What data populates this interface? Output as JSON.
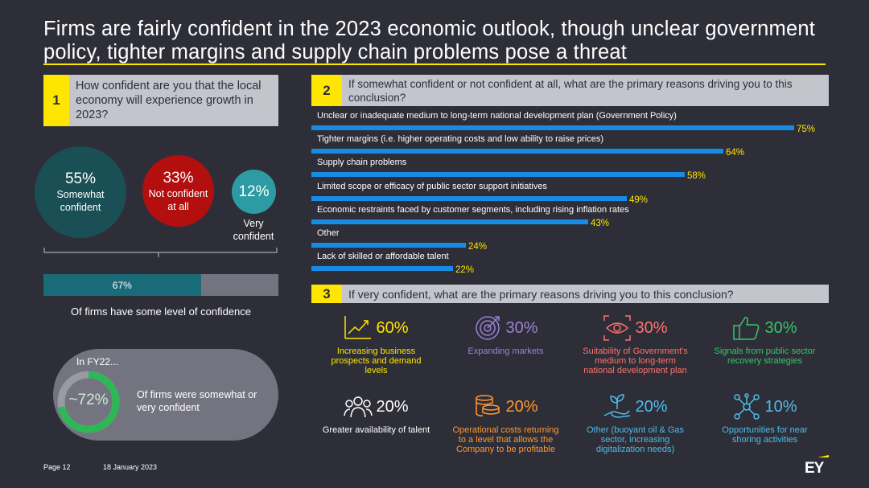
{
  "title": "Firms are fairly confident in the 2023 economic outlook, though unclear government policy, tighter margins and supply chain problems pose a threat",
  "q1": {
    "number": "1",
    "question": "How confident are you that the local economy will experience growth in 2023?",
    "circles": [
      {
        "pct": "55%",
        "label": "Somewhat confident",
        "color": "#1a4f55"
      },
      {
        "pct": "33%",
        "label": "Not confident at all",
        "color": "#b30f0f"
      },
      {
        "pct": "12%",
        "label": "Very confident",
        "color": "#2c9ba3"
      }
    ],
    "summary_bar_value": "67%",
    "summary_bar_fraction": 0.67,
    "summary_caption": "Of firms have some level of confidence",
    "fy22_label": "In FY22...",
    "fy22_value": "~72%",
    "fy22_fraction": 0.72,
    "fy22_caption": "Of firms were somewhat or very confident"
  },
  "q2": {
    "number": "2",
    "question": "If somewhat confident or not confident at all, what are the primary reasons driving you to this conclusion?",
    "items": [
      {
        "label": "Unclear or inadequate medium to long-term national development plan (Government Policy)",
        "value": 75,
        "value_text": "75%"
      },
      {
        "label": "Tighter margins (i.e. higher operating costs and low ability to raise prices)",
        "value": 64,
        "value_text": "64%"
      },
      {
        "label": "Supply chain problems",
        "value": 58,
        "value_text": "58%"
      },
      {
        "label": "Limited scope or efficacy of public sector support initiatives",
        "value": 49,
        "value_text": "49%"
      },
      {
        "label": "Economic restraints faced by customer segments, including rising inflation rates",
        "value": 43,
        "value_text": "43%"
      },
      {
        "label": "Other",
        "value": 24,
        "value_text": "24%"
      },
      {
        "label": "Lack of skilled or affordable talent",
        "value": 22,
        "value_text": "22%"
      }
    ]
  },
  "q3": {
    "number": "3",
    "question": "If very confident, what are the primary reasons driving you to this conclusion?",
    "tiles": [
      {
        "pct": "60%",
        "desc": "Increasing business prospects and demand levels",
        "color": "#ffe600",
        "icon": "growth-chart-icon"
      },
      {
        "pct": "30%",
        "desc": "Expanding markets",
        "color": "#9c82d4",
        "icon": "target-icon"
      },
      {
        "pct": "30%",
        "desc": "Suitability of Government's medium to long-term national development plan",
        "color": "#ff736a",
        "icon": "eye-vision-icon"
      },
      {
        "pct": "30%",
        "desc": "Signals from public sector recovery strategies",
        "color": "#34c768",
        "icon": "thumbs-up-icon"
      },
      {
        "pct": "20%",
        "desc": "Greater availability of talent",
        "color": "#ffffff",
        "icon": "people-icon"
      },
      {
        "pct": "20%",
        "desc": "Operational costs returning to a level that allows the Company to be profitable",
        "color": "#ff9831",
        "icon": "coins-icon"
      },
      {
        "pct": "20%",
        "desc": "Other (buoyant oil & Gas sector, increasing digitalization needs)",
        "color": "#4ebeeb",
        "icon": "hand-plant-icon"
      },
      {
        "pct": "10%",
        "desc": "Opportunities for near shoring activities",
        "color": "#4ebeeb",
        "icon": "network-icon"
      }
    ]
  },
  "footer": {
    "page": "Page 12",
    "date": "18 January 2023",
    "logo": "EY"
  }
}
